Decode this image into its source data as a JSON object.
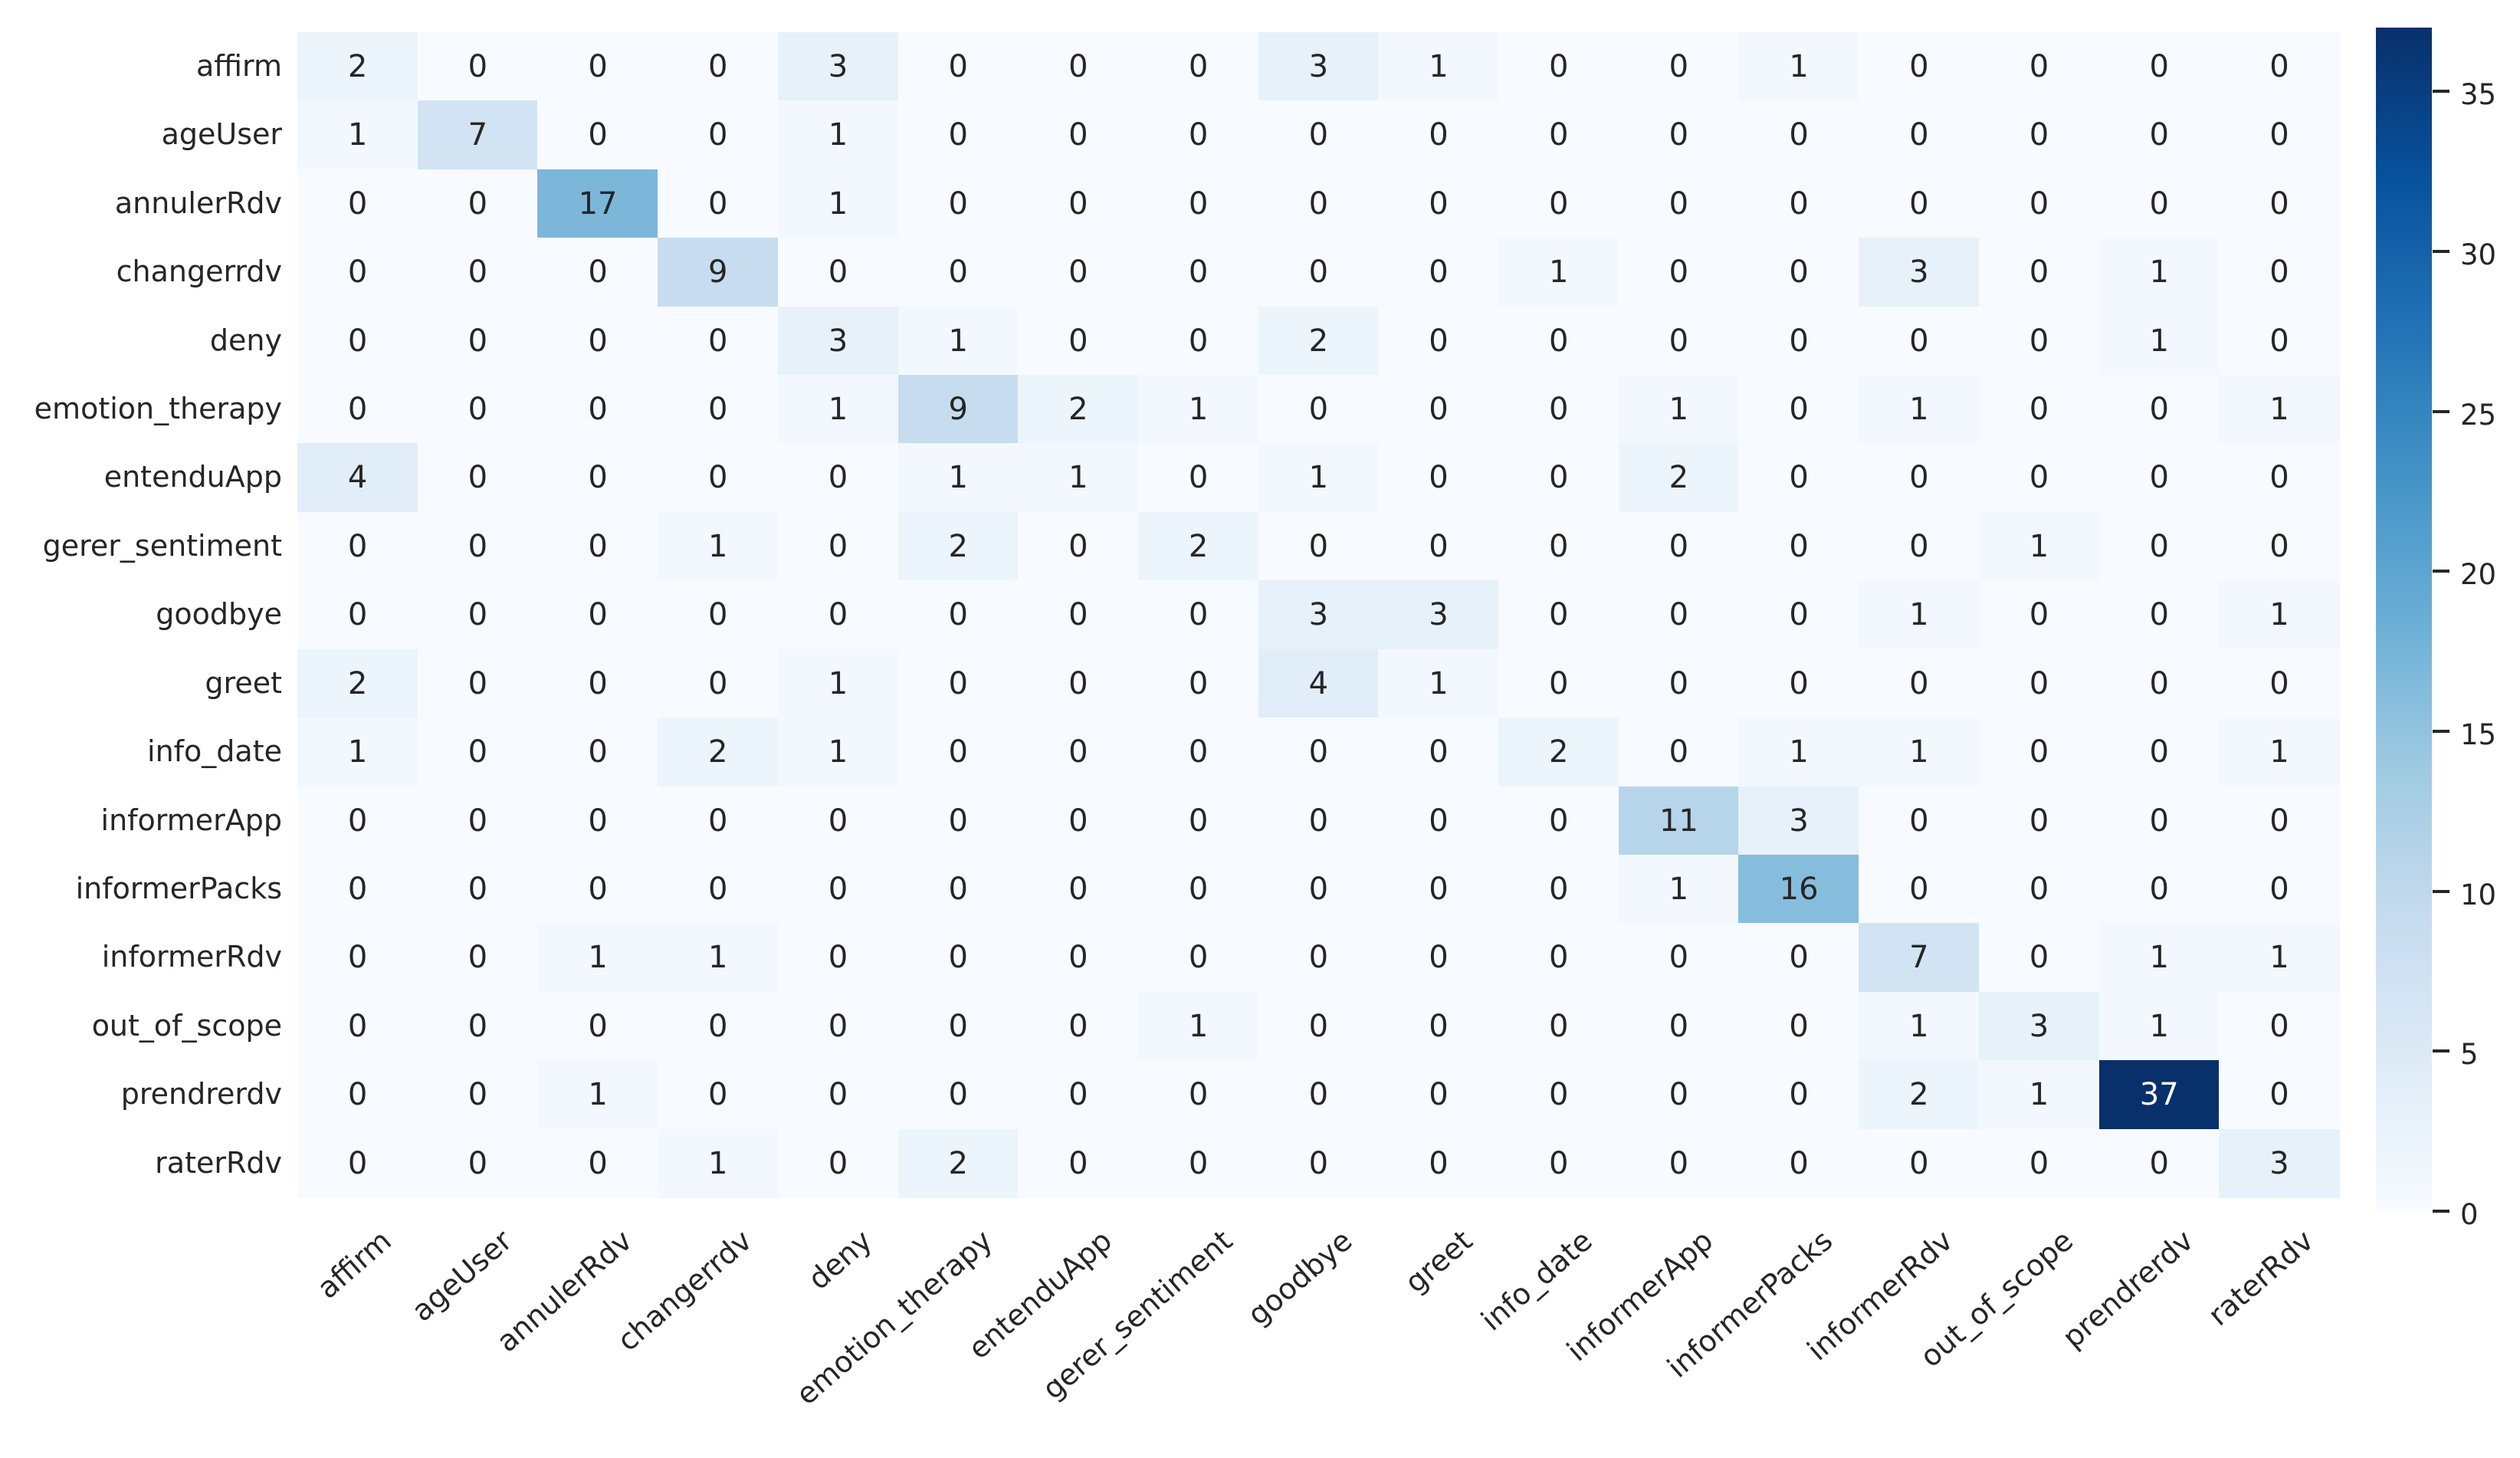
{
  "figure": {
    "background_color": "#ffffff",
    "text_color": "#262626"
  },
  "chart_data": {
    "type": "heatmap",
    "title": "",
    "xlabel": "",
    "ylabel": "",
    "x_categories": [
      "affirm",
      "ageUser",
      "annulerRdv",
      "changerrdv",
      "deny",
      "emotion_therapy",
      "entenduApp",
      "gerer_sentiment",
      "goodbye",
      "greet",
      "info_date",
      "informerApp",
      "informerPacks",
      "informerRdv",
      "out_of_scope",
      "prendrerdv",
      "raterRdv"
    ],
    "y_categories": [
      "affirm",
      "ageUser",
      "annulerRdv",
      "changerrdv",
      "deny",
      "emotion_therapy",
      "entenduApp",
      "gerer_sentiment",
      "goodbye",
      "greet",
      "info_date",
      "informerApp",
      "informerPacks",
      "informerRdv",
      "out_of_scope",
      "prendrerdv",
      "raterRdv"
    ],
    "matrix": [
      [
        2,
        0,
        0,
        0,
        3,
        0,
        0,
        0,
        3,
        1,
        0,
        0,
        1,
        0,
        0,
        0,
        0
      ],
      [
        1,
        7,
        0,
        0,
        1,
        0,
        0,
        0,
        0,
        0,
        0,
        0,
        0,
        0,
        0,
        0,
        0
      ],
      [
        0,
        0,
        17,
        0,
        1,
        0,
        0,
        0,
        0,
        0,
        0,
        0,
        0,
        0,
        0,
        0,
        0
      ],
      [
        0,
        0,
        0,
        9,
        0,
        0,
        0,
        0,
        0,
        0,
        1,
        0,
        0,
        3,
        0,
        1,
        0
      ],
      [
        0,
        0,
        0,
        0,
        3,
        1,
        0,
        0,
        2,
        0,
        0,
        0,
        0,
        0,
        0,
        1,
        0
      ],
      [
        0,
        0,
        0,
        0,
        1,
        9,
        2,
        1,
        0,
        0,
        0,
        1,
        0,
        1,
        0,
        0,
        1
      ],
      [
        4,
        0,
        0,
        0,
        0,
        1,
        1,
        0,
        1,
        0,
        0,
        2,
        0,
        0,
        0,
        0,
        0
      ],
      [
        0,
        0,
        0,
        1,
        0,
        2,
        0,
        2,
        0,
        0,
        0,
        0,
        0,
        0,
        1,
        0,
        0
      ],
      [
        0,
        0,
        0,
        0,
        0,
        0,
        0,
        0,
        3,
        3,
        0,
        0,
        0,
        1,
        0,
        0,
        1
      ],
      [
        2,
        0,
        0,
        0,
        1,
        0,
        0,
        0,
        4,
        1,
        0,
        0,
        0,
        0,
        0,
        0,
        0
      ],
      [
        1,
        0,
        0,
        2,
        1,
        0,
        0,
        0,
        0,
        0,
        2,
        0,
        1,
        1,
        0,
        0,
        1
      ],
      [
        0,
        0,
        0,
        0,
        0,
        0,
        0,
        0,
        0,
        0,
        0,
        11,
        3,
        0,
        0,
        0,
        0
      ],
      [
        0,
        0,
        0,
        0,
        0,
        0,
        0,
        0,
        0,
        0,
        0,
        1,
        16,
        0,
        0,
        0,
        0
      ],
      [
        0,
        0,
        1,
        1,
        0,
        0,
        0,
        0,
        0,
        0,
        0,
        0,
        0,
        7,
        0,
        1,
        1
      ],
      [
        0,
        0,
        0,
        0,
        0,
        0,
        0,
        1,
        0,
        0,
        0,
        0,
        0,
        1,
        3,
        1,
        0
      ],
      [
        0,
        0,
        1,
        0,
        0,
        0,
        0,
        0,
        0,
        0,
        0,
        0,
        0,
        2,
        1,
        37,
        0
      ],
      [
        0,
        0,
        0,
        1,
        0,
        2,
        0,
        0,
        0,
        0,
        0,
        0,
        0,
        0,
        0,
        0,
        3
      ]
    ],
    "annotated": true,
    "grid": false,
    "vmin": 0,
    "vmax": 37,
    "colormap": "Blues",
    "colormap_stops": [
      "#f7fbff",
      "#deebf7",
      "#c6dbef",
      "#9ecae1",
      "#6baed6",
      "#4292c6",
      "#2171b5",
      "#08519c",
      "#08306b"
    ],
    "annotation_text_dark": "#262626",
    "annotation_text_light": "#ffffff",
    "colorbar": {
      "position": "right",
      "ticks": [
        0,
        5,
        10,
        15,
        20,
        25,
        30,
        35
      ]
    }
  }
}
